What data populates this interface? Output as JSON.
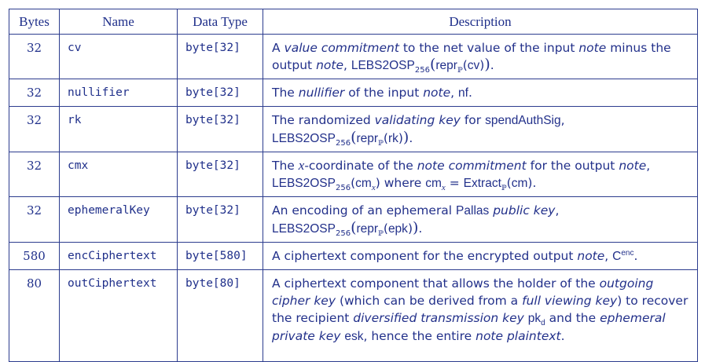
{
  "headers": {
    "bytes": "Bytes",
    "name": "Name",
    "type": "Data Type",
    "description": "Description"
  },
  "rows": [
    {
      "bytes": "32",
      "name": "cv",
      "type": "byte[32]",
      "desc": {
        "t1": "A ",
        "e1": "value commitment",
        "t2": " to the net value of the input ",
        "e2": "note",
        "t3": " minus the output ",
        "e3": "note",
        "t4": ", ",
        "f_lebs": "LEBS2OSP",
        "f_sub": "256",
        "f_repr": "repr",
        "f_repr_sub": "ℙ",
        "f_arg": "cv",
        "t5": "."
      }
    },
    {
      "bytes": "32",
      "name": "nullifier",
      "type": "byte[32]",
      "desc": {
        "t1": "The ",
        "e1": "nullifier",
        "t2": " of the input ",
        "e2": "note",
        "t3": ", ",
        "s1": "nf",
        "t4": "."
      }
    },
    {
      "bytes": "32",
      "name": "rk",
      "type": "byte[32]",
      "desc": {
        "t1": "The randomized ",
        "e1": "validating key",
        "t2": " for ",
        "s1": "spendAuthSig",
        "t3": ",",
        "f_lebs": "LEBS2OSP",
        "f_sub": "256",
        "f_repr": "repr",
        "f_repr_sub": "ℙ",
        "f_arg": "rk",
        "t4": "."
      }
    },
    {
      "bytes": "32",
      "name": "cmx",
      "type": "byte[32]",
      "desc": {
        "t1": "The ",
        "m1": "x",
        "t2": "-coordinate of the ",
        "e1": "note commitment",
        "t3": " for the output ",
        "e2": "note",
        "t4": ",",
        "f_lebs": "LEBS2OSP",
        "f_sub": "256",
        "f_arg": "cm",
        "f_arg_sub": "x",
        "t5": " where ",
        "s1": "cm",
        "s1_sub": "x",
        "t6": " = ",
        "s2": "Extract",
        "s2_sub": "ℙ",
        "s3": "cm",
        "t7": "."
      }
    },
    {
      "bytes": "32",
      "name": "ephemeralKey",
      "type": "byte[32]",
      "desc": {
        "t1": "An encoding of an ephemeral ",
        "s1": "Pallas",
        "t2": " ",
        "e1": "public key",
        "t3": ",",
        "f_lebs": "LEBS2OSP",
        "f_sub": "256",
        "f_repr": "repr",
        "f_repr_sub": "ℙ",
        "f_arg": "epk",
        "t4": "."
      }
    },
    {
      "bytes": "580",
      "name": "encCiphertext",
      "type": "byte[580]",
      "desc": {
        "t1": "A ciphertext component for the encrypted output ",
        "e1": "note",
        "t2": ", ",
        "s1": "C",
        "s1_sup": "enc",
        "t3": "."
      }
    },
    {
      "bytes": "80",
      "name": "outCiphertext",
      "type": "byte[80]",
      "desc": {
        "t1": "A ciphertext component that allows the holder of the ",
        "e1": "outgoing cipher key",
        "t2": " (which can be derived from a ",
        "e2": "full viewing key",
        "t3": ") to recover the recipient ",
        "e3": "diversified transmission key",
        "t4": " ",
        "s1": "pk",
        "s1_sub": "d",
        "t5": " and the ",
        "e4": "ephemeral private key",
        "t6": " ",
        "s2": "esk",
        "t7": ", hence the entire ",
        "e5": "note plaintext",
        "t8": "."
      }
    }
  ]
}
